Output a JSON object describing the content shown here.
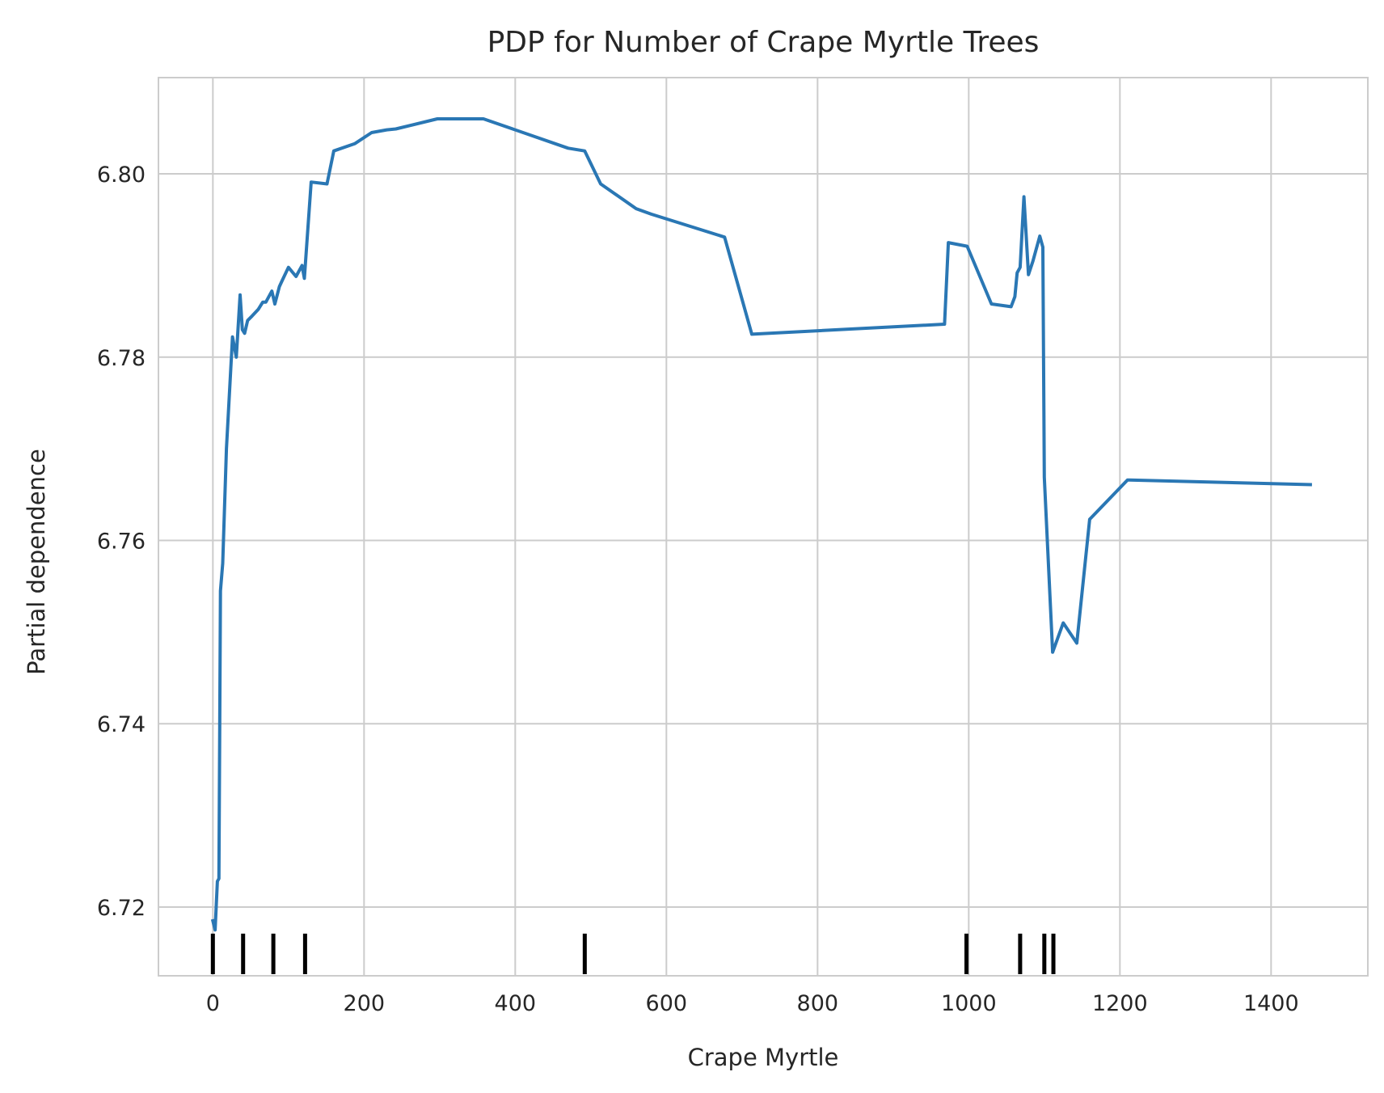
{
  "chart_data": {
    "type": "line",
    "title": "PDP for Number of Crape Myrtle Trees",
    "xlabel": "Crape Myrtle",
    "ylabel": "Partial dependence",
    "xlim": [
      -72,
      1528
    ],
    "ylim": [
      6.7125,
      6.8105
    ],
    "x_ticks": [
      0,
      200,
      400,
      600,
      800,
      1000,
      1200,
      1400
    ],
    "x_tick_labels": [
      "0",
      "200",
      "400",
      "600",
      "800",
      "1000",
      "1200",
      "1400"
    ],
    "y_ticks": [
      6.72,
      6.74,
      6.76,
      6.78,
      6.8
    ],
    "y_tick_labels": [
      "6.72",
      "6.74",
      "6.76",
      "6.78",
      "6.80"
    ],
    "grid": true,
    "colors": {
      "line": "#2a77b4",
      "rug": "#000000",
      "grid": "#cccccc",
      "spine": "#cccccc",
      "text": "#262626"
    },
    "series": [
      {
        "x": [
          0,
          3,
          6,
          8,
          10,
          13,
          18,
          26,
          31,
          36,
          39,
          42,
          46,
          52,
          60,
          66,
          70,
          78,
          82,
          88,
          92,
          100,
          110,
          118,
          121,
          130,
          151,
          160,
          188,
          210,
          230,
          242,
          297,
          358,
          470,
          492,
          513,
          560,
          580,
          677,
          713,
          968,
          973,
          998,
          1030,
          1056,
          1061,
          1064,
          1068,
          1073,
          1079,
          1085,
          1094,
          1098,
          1100,
          1111,
          1125,
          1143,
          1160,
          1210,
          1452
        ],
        "y": [
          6.7185,
          6.7175,
          6.7228,
          6.7231,
          6.7545,
          6.7575,
          6.77,
          6.7822,
          6.78,
          6.7868,
          6.783,
          6.7826,
          6.784,
          6.7845,
          6.7852,
          6.786,
          6.786,
          6.7872,
          6.7858,
          6.7877,
          6.7884,
          6.7898,
          6.7888,
          6.79,
          6.7886,
          6.7991,
          6.7989,
          6.8025,
          6.8033,
          6.8045,
          6.8048,
          6.8049,
          6.806,
          6.806,
          6.8028,
          6.8025,
          6.7989,
          6.7962,
          6.7956,
          6.7931,
          6.7825,
          6.7836,
          6.7925,
          6.7921,
          6.7858,
          6.7855,
          6.7866,
          6.7892,
          6.7898,
          6.7975,
          6.789,
          6.7905,
          6.7932,
          6.792,
          6.7669,
          6.7478,
          6.751,
          6.7488,
          6.7623,
          6.7666,
          6.7661
        ]
      }
    ],
    "rug": [
      0,
      40,
      80,
      122,
      492,
      997,
      1068,
      1100,
      1112
    ]
  }
}
